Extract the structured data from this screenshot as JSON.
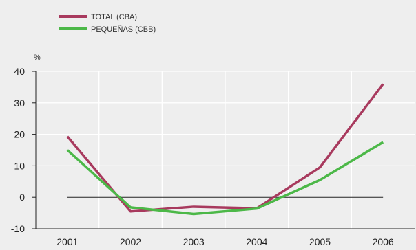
{
  "chart_data": {
    "type": "line",
    "unit_label": "%",
    "categories": [
      "2001",
      "2002",
      "2003",
      "2004",
      "2005",
      "2006"
    ],
    "series": [
      {
        "name": "TOTAL (CBA)",
        "color": "#a83a5e",
        "values": [
          19.3,
          -4.5,
          -3.0,
          -3.5,
          9.5,
          36.0
        ]
      },
      {
        "name": "PEQUEÑAS (CBB)",
        "color": "#4cb848",
        "values": [
          15.0,
          -3.2,
          -5.3,
          -3.6,
          5.5,
          17.5
        ]
      }
    ],
    "yticks": [
      40,
      30,
      20,
      10,
      0,
      -10
    ],
    "ylim": [
      -10,
      40
    ],
    "grid": true,
    "legend": "top-left",
    "zero_line_color": "#222222",
    "grid_color": "#ffffff"
  }
}
